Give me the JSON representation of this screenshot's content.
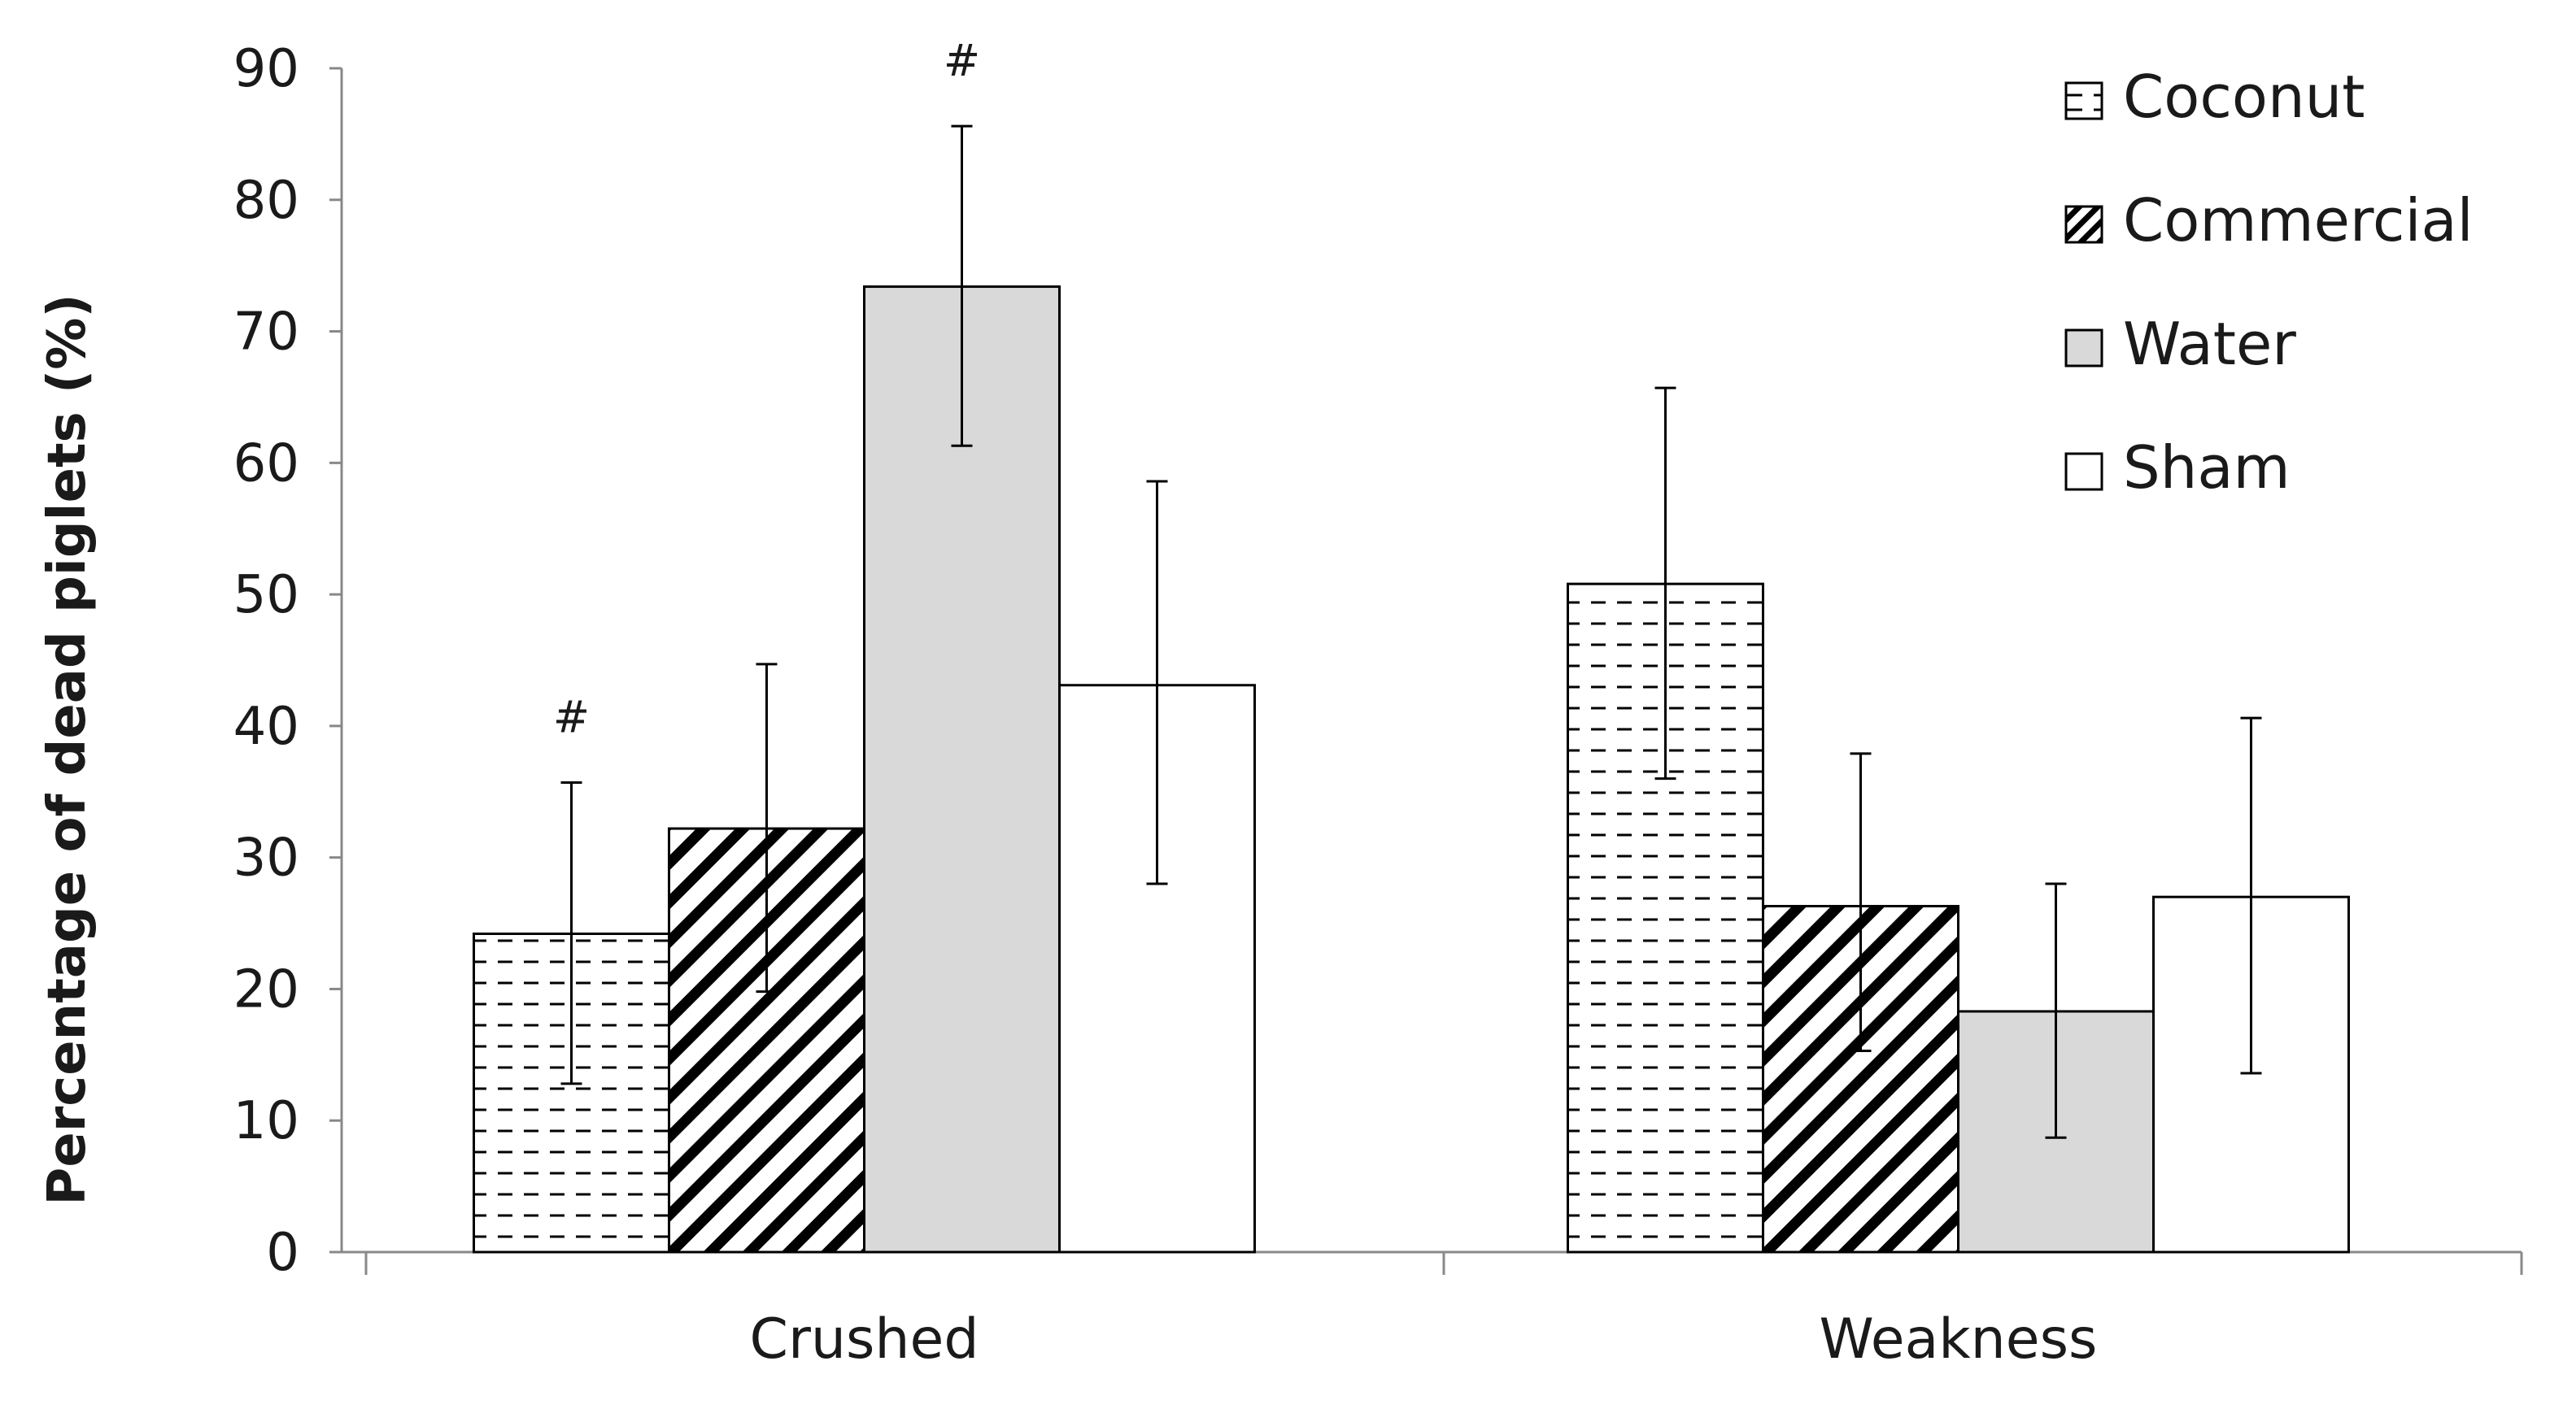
{
  "chart_data": {
    "type": "bar",
    "title": "",
    "xlabel": "",
    "ylabel": "Percentage of dead piglets (%)",
    "ylim": [
      0,
      90
    ],
    "yticks": [
      0,
      10,
      20,
      30,
      40,
      50,
      60,
      70,
      80,
      90
    ],
    "categories": [
      "Crushed",
      "Weakness"
    ],
    "series": [
      {
        "name": "Coconut",
        "pattern": "dashed-horizontal",
        "fill": "#ffffff",
        "values": [
          24.2,
          50.8
        ],
        "err_low": [
          12.8,
          36.0
        ],
        "err_high": [
          35.7,
          65.7
        ]
      },
      {
        "name": "Commercial",
        "pattern": "diagonal-hatch",
        "fill": "#ffffff",
        "values": [
          32.2,
          26.3
        ],
        "err_low": [
          19.8,
          15.3
        ],
        "err_high": [
          44.7,
          37.9
        ]
      },
      {
        "name": "Water",
        "pattern": "solid",
        "fill": "#d9d9d9",
        "values": [
          73.4,
          18.3
        ],
        "err_low": [
          61.3,
          8.7
        ],
        "err_high": [
          85.6,
          28.0
        ]
      },
      {
        "name": "Sham",
        "pattern": "none",
        "fill": "#ffffff",
        "values": [
          43.1,
          27.0
        ],
        "err_low": [
          28.0,
          13.6
        ],
        "err_high": [
          58.6,
          40.6
        ]
      }
    ],
    "annotations": [
      {
        "text": "#",
        "category": "Crushed",
        "series": "Coconut"
      },
      {
        "text": "#",
        "category": "Crushed",
        "series": "Water"
      }
    ],
    "legend": {
      "position": "top-right"
    },
    "grid": false
  }
}
